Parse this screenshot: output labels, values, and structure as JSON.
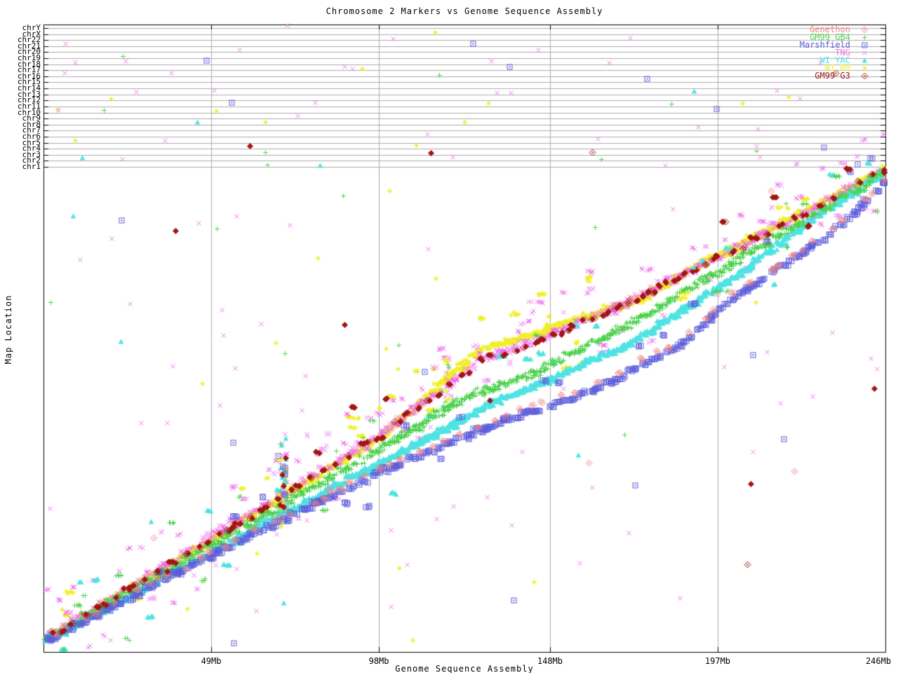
{
  "chart_data": {
    "type": "scatter",
    "title": "Chromosome 2 Markers vs Genome Sequence Assembly",
    "xlabel": "Genome Sequence Assembly",
    "ylabel": "Map Location",
    "x_range_mb": [
      0,
      246
    ],
    "x_ticks": [
      {
        "label": "49Mb",
        "mb": 49
      },
      {
        "label": "98Mb",
        "mb": 98
      },
      {
        "label": "148Mb",
        "mb": 148
      },
      {
        "label": "197Mb",
        "mb": 197
      },
      {
        "label": "246Mb",
        "mb": 246
      }
    ],
    "y_categories_top_to_bottom": [
      "chrY",
      "chrX",
      "chr22",
      "chr21",
      "chr20",
      "chr19",
      "chr18",
      "chr17",
      "chr16",
      "chr15",
      "chr14",
      "chr13",
      "chr12",
      "chr11",
      "chr10",
      "chr9",
      "chr8",
      "chr7",
      "chr6",
      "chr5",
      "chr4",
      "chr3",
      "chr2",
      "chr1"
    ],
    "grid": true,
    "grid_color": "#ababab",
    "legend_position": "top-right",
    "series": [
      {
        "id": "genethon",
        "label": "Genethon",
        "color": "#f08080",
        "marker": "diamond",
        "style": "open",
        "path_mb_dy": [
          [
            0,
            0
          ],
          [
            49,
            8
          ],
          [
            98,
            22
          ],
          [
            130,
            42
          ],
          [
            160,
            72
          ],
          [
            185,
            78
          ],
          [
            200,
            55
          ],
          [
            230,
            40
          ],
          [
            246,
            12
          ]
        ],
        "step_mb": 4.5,
        "run": 2,
        "jitter": 3,
        "stray": 0.05,
        "outliers": 4
      },
      {
        "id": "gm99_gb4",
        "label": "GM99 GB4",
        "color": "#4fd24f",
        "marker": "plus",
        "style": "open",
        "path_mb_dy": [
          [
            0,
            0
          ],
          [
            49,
            -3
          ],
          [
            98,
            -6
          ],
          [
            120,
            -14
          ],
          [
            140,
            6
          ],
          [
            160,
            12
          ],
          [
            172,
            15
          ],
          [
            200,
            8
          ],
          [
            230,
            3
          ],
          [
            246,
            0
          ]
        ],
        "step_mb": 0.62,
        "run": 4,
        "jitter": 6,
        "stray": 0.08,
        "outliers": 10
      },
      {
        "id": "marshfield",
        "label": "Marshfield",
        "color": "#5b5bdc",
        "marker": "square",
        "style": "open",
        "path_mb_dy": [
          [
            0,
            2
          ],
          [
            49,
            12
          ],
          [
            98,
            28
          ],
          [
            130,
            48
          ],
          [
            160,
            80
          ],
          [
            185,
            85
          ],
          [
            200,
            60
          ],
          [
            230,
            45
          ],
          [
            246,
            15
          ]
        ],
        "step_mb": 1.15,
        "run": 3,
        "jitter": 4,
        "stray": 0.06,
        "outliers": 8
      },
      {
        "id": "tng",
        "label": "TNG",
        "color": "#ee6cee",
        "marker": "cross",
        "style": "open",
        "path_mb_dy": [
          [
            0,
            0
          ],
          [
            49,
            -14
          ],
          [
            98,
            -26
          ],
          [
            118,
            -45
          ],
          [
            128,
            -55
          ],
          [
            140,
            -40
          ],
          [
            160,
            -25
          ],
          [
            172,
            -18
          ],
          [
            200,
            -10
          ],
          [
            246,
            -2
          ]
        ],
        "step_mb": 0.6,
        "run": 4,
        "jitter": 7,
        "stray": 0.14,
        "outliers": 55
      },
      {
        "id": "wi_yac",
        "label": "WI YAC",
        "color": "#50e3e3",
        "marker": "triangle",
        "style": "fill",
        "path_mb_dy": [
          [
            0,
            2
          ],
          [
            49,
            6
          ],
          [
            98,
            14
          ],
          [
            130,
            18
          ],
          [
            150,
            30
          ],
          [
            172,
            42
          ],
          [
            200,
            30
          ],
          [
            230,
            5
          ],
          [
            246,
            0
          ]
        ],
        "step_mb": 0.6,
        "run": 5,
        "jitter": 4,
        "stray": 0.05,
        "outliers": 6
      },
      {
        "id": "wi_rh",
        "label": "WI RH",
        "color": "#f0f028",
        "marker": "asterisk",
        "style": "open",
        "path_mb_dy": [
          [
            0,
            0
          ],
          [
            49,
            -10
          ],
          [
            98,
            -22
          ],
          [
            118,
            -55
          ],
          [
            128,
            -68
          ],
          [
            140,
            -50
          ],
          [
            160,
            -30
          ],
          [
            172,
            -15
          ],
          [
            200,
            -12
          ],
          [
            225,
            -8
          ],
          [
            246,
            -2
          ]
        ],
        "step_mb": 0.52,
        "run": 5,
        "jitter": 5,
        "stray": 0.07,
        "outliers": 14
      },
      {
        "id": "gm99_g3",
        "label": "GM99 G3",
        "color": "#a21515",
        "marker": "diamond",
        "style": "mixed",
        "path_mb_dy": [
          [
            0,
            0
          ],
          [
            49,
            -12
          ],
          [
            98,
            -24
          ],
          [
            128,
            -50
          ],
          [
            140,
            -38
          ],
          [
            160,
            -24
          ],
          [
            172,
            -16
          ],
          [
            200,
            -9
          ],
          [
            246,
            -2
          ]
        ],
        "step_mb": 2.6,
        "run": 2,
        "jitter": 5,
        "stray": 0.1,
        "outliers": 8
      }
    ],
    "draw_order": [
      "wi_rh",
      "tng",
      "wi_yac",
      "gm99_gb4",
      "marshfield",
      "genethon",
      "gm99_g3"
    ],
    "vertical_spurs": [
      {
        "mb": 70,
        "up": 100,
        "down": 40,
        "counts": {
          "tng": 22,
          "wi_rh": 14,
          "wi_yac": 10,
          "marshfield": 8,
          "gm99_gb4": 8,
          "gm99_g3": 5
        }
      },
      {
        "mb": 118,
        "up": 90,
        "down": 10,
        "counts": {
          "tng": 10,
          "wi_rh": 8,
          "gm99_gb4": 5
        }
      }
    ],
    "chromosome_row_points": {
      "total": 72,
      "weights": {
        "tng": 30,
        "gm99_gb4": 12,
        "wi_rh": 10,
        "wi_yac": 8,
        "marshfield": 7,
        "gm99_g3": 5
      }
    },
    "axis_color": "#000000",
    "background_color": "#ffffff"
  }
}
